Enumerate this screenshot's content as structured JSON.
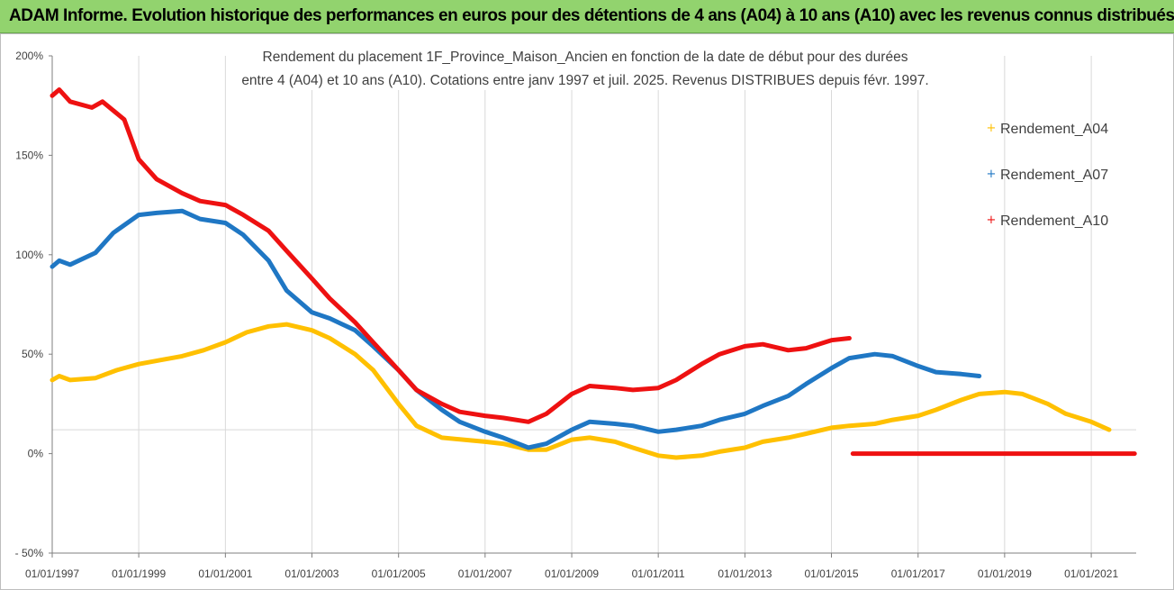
{
  "banner": {
    "title": "ADAM Informe. Evolution historique des performances en euros pour des détentions de 4 ans (A04) à 10 ans (A10) avec les revenus connus distribués"
  },
  "chart_data": {
    "type": "line",
    "title_lines": [
      "Rendement du placement 1F_Province_Maison_Ancien en fonction de la date de début pour des durées",
      "entre 4 (A04) et 10 ans (A10).  Cotations entre janv 1997 et juil. 2025. Revenus DISTRIBUES depuis févr. 1997."
    ],
    "xlabel": "",
    "ylabel": "",
    "x_tick_labels": [
      "01/01/1997",
      "01/01/1999",
      "01/01/2001",
      "01/01/2003",
      "01/01/2005",
      "01/01/2007",
      "01/01/2009",
      "01/01/2011",
      "01/01/2013",
      "01/01/2015",
      "01/01/2017",
      "01/01/2019",
      "01/01/2021"
    ],
    "y_tick_labels": [
      "200%",
      "150%",
      "100%",
      "50%",
      "0%",
      "- 50%"
    ],
    "xlim": [
      "1997-01-01",
      "2022-01-15"
    ],
    "ylim": [
      -50,
      200
    ],
    "y_ticks": [
      200,
      150,
      100,
      50,
      0,
      -50
    ],
    "grid": "vertical gridlines at year ticks",
    "legend_position": "right",
    "series": [
      {
        "name": "Rendement_A04",
        "color": "#ffc000",
        "points": [
          [
            "1997-01-01",
            37
          ],
          [
            "1997-03-01",
            39
          ],
          [
            "1997-06-01",
            37
          ],
          [
            "1998-01-01",
            38
          ],
          [
            "1998-07-01",
            42
          ],
          [
            "1999-01-01",
            45
          ],
          [
            "1999-07-01",
            47
          ],
          [
            "2000-01-01",
            49
          ],
          [
            "2000-07-01",
            52
          ],
          [
            "2001-01-01",
            56
          ],
          [
            "2001-07-01",
            61
          ],
          [
            "2002-01-01",
            64
          ],
          [
            "2002-06-01",
            65
          ],
          [
            "2003-01-01",
            62
          ],
          [
            "2003-06-01",
            58
          ],
          [
            "2004-01-01",
            50
          ],
          [
            "2004-06-01",
            42
          ],
          [
            "2005-01-01",
            25
          ],
          [
            "2005-06-01",
            14
          ],
          [
            "2006-01-01",
            8
          ],
          [
            "2007-01-01",
            6
          ],
          [
            "2007-06-01",
            5
          ],
          [
            "2008-01-01",
            2
          ],
          [
            "2008-06-01",
            2
          ],
          [
            "2009-01-01",
            7
          ],
          [
            "2009-06-01",
            8
          ],
          [
            "2010-01-01",
            6
          ],
          [
            "2010-06-01",
            3
          ],
          [
            "2011-01-01",
            -1
          ],
          [
            "2011-06-01",
            -2
          ],
          [
            "2012-01-01",
            -1
          ],
          [
            "2012-06-01",
            1
          ],
          [
            "2013-01-01",
            3
          ],
          [
            "2013-06-01",
            6
          ],
          [
            "2014-01-01",
            8
          ],
          [
            "2014-06-01",
            10
          ],
          [
            "2015-01-01",
            13
          ],
          [
            "2015-06-01",
            14
          ],
          [
            "2016-01-01",
            15
          ],
          [
            "2016-06-01",
            17
          ],
          [
            "2017-01-01",
            19
          ],
          [
            "2017-06-01",
            22
          ],
          [
            "2018-01-01",
            27
          ],
          [
            "2018-06-01",
            30
          ],
          [
            "2019-01-01",
            31
          ],
          [
            "2019-06-01",
            30
          ],
          [
            "2020-01-01",
            25
          ],
          [
            "2020-06-01",
            20
          ],
          [
            "2021-01-01",
            16
          ],
          [
            "2021-06-01",
            12
          ]
        ]
      },
      {
        "name": "Rendement_A07",
        "color": "#1f77c4",
        "points": [
          [
            "1997-01-01",
            94
          ],
          [
            "1997-03-01",
            97
          ],
          [
            "1997-06-01",
            95
          ],
          [
            "1998-01-01",
            101
          ],
          [
            "1998-06-01",
            111
          ],
          [
            "1999-01-01",
            120
          ],
          [
            "1999-06-01",
            121
          ],
          [
            "2000-01-01",
            122
          ],
          [
            "2000-06-01",
            118
          ],
          [
            "2001-01-01",
            116
          ],
          [
            "2001-06-01",
            110
          ],
          [
            "2002-01-01",
            97
          ],
          [
            "2002-06-01",
            82
          ],
          [
            "2003-01-01",
            71
          ],
          [
            "2003-06-01",
            68
          ],
          [
            "2004-01-01",
            62
          ],
          [
            "2004-06-01",
            54
          ],
          [
            "2005-01-01",
            42
          ],
          [
            "2005-06-01",
            32
          ],
          [
            "2006-01-01",
            22
          ],
          [
            "2006-06-01",
            16
          ],
          [
            "2007-01-01",
            11
          ],
          [
            "2007-06-01",
            8
          ],
          [
            "2008-01-01",
            3
          ],
          [
            "2008-06-01",
            5
          ],
          [
            "2009-01-01",
            12
          ],
          [
            "2009-06-01",
            16
          ],
          [
            "2010-01-01",
            15
          ],
          [
            "2010-06-01",
            14
          ],
          [
            "2011-01-01",
            11
          ],
          [
            "2011-06-01",
            12
          ],
          [
            "2012-01-01",
            14
          ],
          [
            "2012-06-01",
            17
          ],
          [
            "2013-01-01",
            20
          ],
          [
            "2013-06-01",
            24
          ],
          [
            "2014-01-01",
            29
          ],
          [
            "2014-06-01",
            35
          ],
          [
            "2015-01-01",
            43
          ],
          [
            "2015-06-01",
            48
          ],
          [
            "2016-01-01",
            50
          ],
          [
            "2016-06-01",
            49
          ],
          [
            "2017-01-01",
            44
          ],
          [
            "2017-06-01",
            41
          ],
          [
            "2018-01-01",
            40
          ],
          [
            "2018-06-01",
            39
          ]
        ]
      },
      {
        "name": "Rendement_A10",
        "color": "#ee1111",
        "points": [
          [
            "1997-01-01",
            180
          ],
          [
            "1997-03-01",
            183
          ],
          [
            "1997-06-01",
            177
          ],
          [
            "1997-12-01",
            174
          ],
          [
            "1998-03-01",
            177
          ],
          [
            "1998-09-01",
            168
          ],
          [
            "1999-01-01",
            148
          ],
          [
            "1999-06-01",
            138
          ],
          [
            "2000-01-01",
            131
          ],
          [
            "2000-06-01",
            127
          ],
          [
            "2001-01-01",
            125
          ],
          [
            "2001-06-01",
            120
          ],
          [
            "2002-01-01",
            112
          ],
          [
            "2002-06-01",
            102
          ],
          [
            "2003-01-01",
            88
          ],
          [
            "2003-06-01",
            78
          ],
          [
            "2004-01-01",
            66
          ],
          [
            "2004-06-01",
            56
          ],
          [
            "2005-01-01",
            42
          ],
          [
            "2005-06-01",
            32
          ],
          [
            "2006-01-01",
            25
          ],
          [
            "2006-06-01",
            21
          ],
          [
            "2007-01-01",
            19
          ],
          [
            "2007-06-01",
            18
          ],
          [
            "2008-01-01",
            16
          ],
          [
            "2008-06-01",
            20
          ],
          [
            "2009-01-01",
            30
          ],
          [
            "2009-06-01",
            34
          ],
          [
            "2010-01-01",
            33
          ],
          [
            "2010-06-01",
            32
          ],
          [
            "2011-01-01",
            33
          ],
          [
            "2011-06-01",
            37
          ],
          [
            "2012-01-01",
            45
          ],
          [
            "2012-06-01",
            50
          ],
          [
            "2013-01-01",
            54
          ],
          [
            "2013-06-01",
            55
          ],
          [
            "2014-01-01",
            52
          ],
          [
            "2014-06-01",
            53
          ],
          [
            "2015-01-01",
            57
          ],
          [
            "2015-06-01",
            58
          ],
          [
            "2015-07-01",
            0
          ],
          [
            "2022-01-01",
            0
          ]
        ]
      }
    ]
  }
}
